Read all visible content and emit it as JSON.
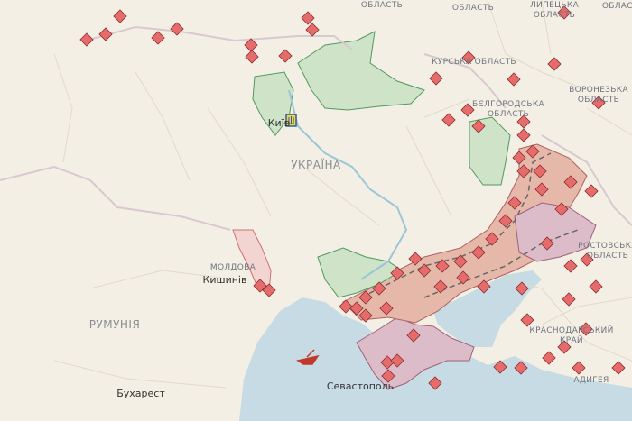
{
  "colors": {
    "land": "#f3efe4",
    "sea": "#c6dbe3",
    "occupied": "#e6b8aa",
    "occupied_crimea": "#dcbcc8",
    "liberated": "#cfe3c8",
    "liberated_border": "#4f9a5f",
    "marker": "#e66b6b",
    "marker_border": "#8a3030"
  },
  "labels": {
    "oblast_top_left": "ОБЛАСТЬ",
    "orel": "ОРЛОВСЬКА\nОБЛАСТЬ",
    "lipetsk": "ЛИПЕЦЬКА\nОБЛАСТЬ",
    "oblast_top_right": "ОБЛАСТЬ",
    "kursk": "КУРСЬКА ОБЛАСТЬ",
    "belgorod": "БЄЛГОРОДСЬКА\nОБЛАСТЬ",
    "voronezh": "ВОРОНЕЗЬКА\nОБЛАСТЬ",
    "rostov": "РОСТОВСЬКА\nОБЛАСТЬ",
    "krasnodar": "КРАСНОДАРСЬКИЙ\nКРАЙ",
    "adygea": "АДИГЕЯ",
    "ukraine": "УКРАЇНА",
    "moldova": "МОЛДОВА",
    "romania": "РУМУНІЯ",
    "kyiv": "Київ",
    "chisinau": "Кишинів",
    "bucharest": "Бухарест",
    "sevastopol": "Севастополь"
  },
  "icons": {
    "explosion_marker": "explosion-marker-icon",
    "capital": "trident-icon",
    "ship": "ship-icon"
  }
}
